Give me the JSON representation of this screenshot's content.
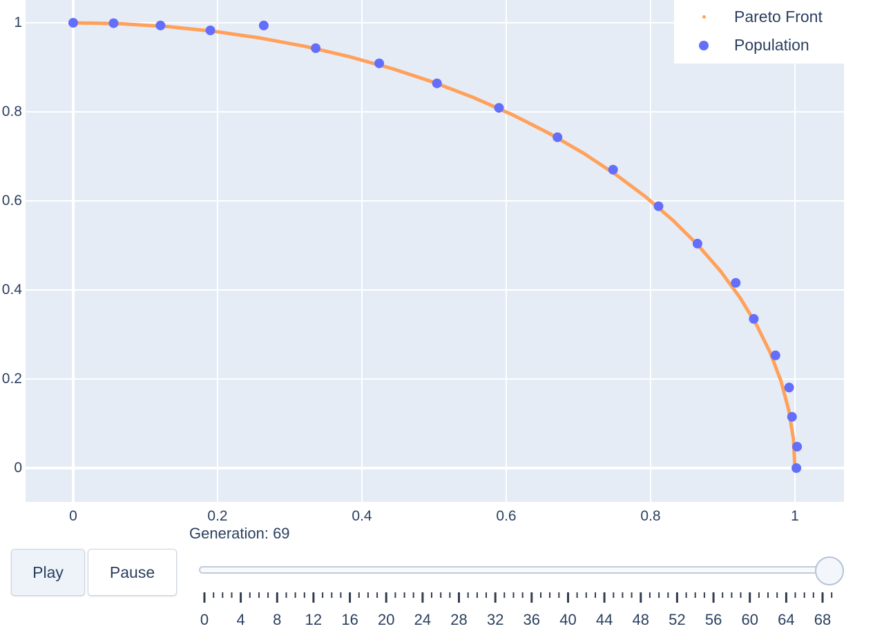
{
  "legend": {
    "entries": [
      {
        "label": "Pareto Front",
        "marker": "small-dot",
        "color": "#ffa15a"
      },
      {
        "label": "Population",
        "marker": "dot",
        "color": "#636efa"
      }
    ],
    "position": "top-right"
  },
  "controls": {
    "play_label": "Play",
    "pause_label": "Pause",
    "generation_label": "Generation: 69",
    "slider": {
      "min": 0,
      "max": 69,
      "value": 69,
      "minor_tick_step": 1,
      "major_tick_step": 4,
      "major_tick_labels": [
        "0",
        "4",
        "8",
        "12",
        "16",
        "20",
        "24",
        "28",
        "32",
        "36",
        "40",
        "44",
        "48",
        "52",
        "56",
        "60",
        "64",
        "68"
      ]
    }
  },
  "chart_data": {
    "type": "scatter",
    "title": "",
    "xlabel": "",
    "ylabel": "",
    "xlim": [
      -0.07,
      1.07
    ],
    "ylim": [
      -0.08,
      1.05
    ],
    "grid": true,
    "plot_bgcolor": "#e5ecf6",
    "gridcolor": "#ffffff",
    "text_color": "#2a3f5f",
    "legend_position": "top-right",
    "xticks": {
      "values": [
        0,
        0.2,
        0.4,
        0.6,
        0.8,
        1
      ],
      "labels": [
        "0",
        "0.2",
        "0.4",
        "0.6",
        "0.8",
        "1"
      ]
    },
    "yticks": {
      "values": [
        0,
        0.2,
        0.4,
        0.6,
        0.8,
        1
      ],
      "labels": [
        "0",
        "0.2",
        "0.4",
        "0.6",
        "0.8",
        "1"
      ]
    },
    "series": [
      {
        "name": "Pareto Front",
        "mode": "line",
        "color": "#ffa15a",
        "line_width": 5,
        "description": "quarter circle y = sqrt(1 - x^2) from (0,1) to (1,0)",
        "x": [
          0.0,
          0.0654,
          0.1305,
          0.1951,
          0.2588,
          0.3214,
          0.3827,
          0.4423,
          0.5,
          0.5556,
          0.6088,
          0.6593,
          0.7071,
          0.7518,
          0.7934,
          0.8315,
          0.866,
          0.8969,
          0.9239,
          0.9469,
          0.9659,
          0.9808,
          0.9914,
          0.9979,
          1.0
        ],
        "y": [
          1.0,
          0.9979,
          0.9914,
          0.9808,
          0.9659,
          0.9469,
          0.9239,
          0.8969,
          0.866,
          0.8315,
          0.7934,
          0.7518,
          0.7071,
          0.6593,
          0.6088,
          0.5556,
          0.5,
          0.4423,
          0.3827,
          0.3214,
          0.2588,
          0.1951,
          0.1305,
          0.0654,
          0.0
        ]
      },
      {
        "name": "Population",
        "mode": "markers",
        "color": "#636efa",
        "marker_size": 14,
        "x": [
          0.0,
          0.056,
          0.121,
          0.19,
          0.264,
          0.336,
          0.424,
          0.504,
          0.59,
          0.671,
          0.748,
          0.811,
          0.865,
          0.918,
          0.943,
          0.973,
          0.992,
          0.996,
          1.003,
          1.002
        ],
        "y": [
          1.0,
          0.999,
          0.994,
          0.983,
          0.994,
          0.943,
          0.909,
          0.864,
          0.809,
          0.743,
          0.67,
          0.588,
          0.504,
          0.416,
          0.335,
          0.253,
          0.181,
          0.115,
          0.048,
          0.0
        ]
      }
    ]
  }
}
